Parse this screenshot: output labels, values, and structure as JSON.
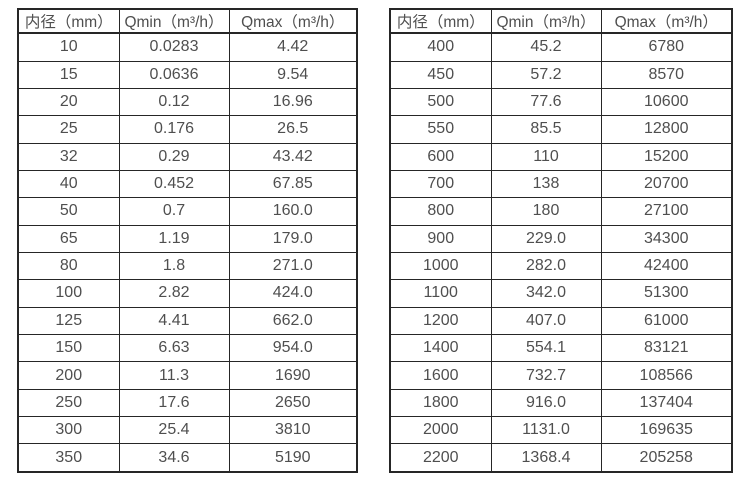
{
  "colors": {
    "border-color": "#262626",
    "text-color": "#4f4f4f",
    "bg-color": "#ffffff"
  },
  "tables": [
    {
      "name": "flow-rate-table-small-diameters",
      "headers": [
        "内径（mm）",
        "Qmin（m³/h）",
        "Qmax（m³/h）"
      ],
      "rows": [
        [
          "10",
          "0.0283",
          "4.42"
        ],
        [
          "15",
          "0.0636",
          "9.54"
        ],
        [
          "20",
          "0.12",
          "16.96"
        ],
        [
          "25",
          "0.176",
          "26.5"
        ],
        [
          "32",
          "0.29",
          "43.42"
        ],
        [
          "40",
          "0.452",
          "67.85"
        ],
        [
          "50",
          "0.7",
          "160.0"
        ],
        [
          "65",
          "1.19",
          "179.0"
        ],
        [
          "80",
          "1.8",
          "271.0"
        ],
        [
          "100",
          "2.82",
          "424.0"
        ],
        [
          "125",
          "4.41",
          "662.0"
        ],
        [
          "150",
          "6.63",
          "954.0"
        ],
        [
          "200",
          "11.3",
          "1690"
        ],
        [
          "250",
          "17.6",
          "2650"
        ],
        [
          "300",
          "25.4",
          "3810"
        ],
        [
          "350",
          "34.6",
          "5190"
        ]
      ]
    },
    {
      "name": "flow-rate-table-large-diameters",
      "headers": [
        "内径（mm）",
        "Qmin（m³/h）",
        "Qmax（m³/h）"
      ],
      "rows": [
        [
          "400",
          "45.2",
          "6780"
        ],
        [
          "450",
          "57.2",
          "8570"
        ],
        [
          "500",
          "77.6",
          "10600"
        ],
        [
          "550",
          "85.5",
          "12800"
        ],
        [
          "600",
          "110",
          "15200"
        ],
        [
          "700",
          "138",
          "20700"
        ],
        [
          "800",
          "180",
          "27100"
        ],
        [
          "900",
          "229.0",
          "34300"
        ],
        [
          "1000",
          "282.0",
          "42400"
        ],
        [
          "1100",
          "342.0",
          "51300"
        ],
        [
          "1200",
          "407.0",
          "61000"
        ],
        [
          "1400",
          "554.1",
          "83121"
        ],
        [
          "1600",
          "732.7",
          "108566"
        ],
        [
          "1800",
          "916.0",
          "137404"
        ],
        [
          "2000",
          "1131.0",
          "169635"
        ],
        [
          "2200",
          "1368.4",
          "205258"
        ]
      ]
    }
  ]
}
